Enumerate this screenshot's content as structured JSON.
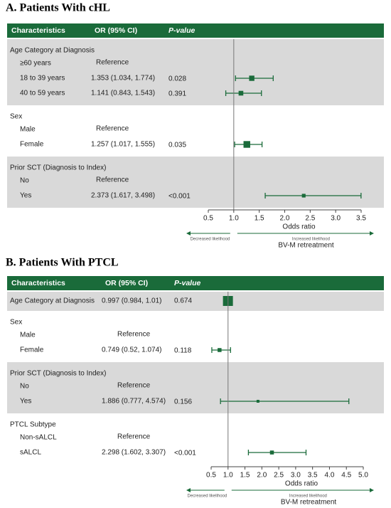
{
  "chart_data": [
    {
      "type": "forest",
      "title": "A. Patients With cHL",
      "columns": [
        "Characteristics",
        "OR (95% CI)",
        "P-value"
      ],
      "xlabel": "Odds ratio",
      "left_note": "Decreased likelihood",
      "right_note": "Increased likelihood",
      "footer": "BV-M retreatment",
      "xlim": [
        0.5,
        3.5
      ],
      "xticks": [
        0.5,
        {
          "value": 1,
          "label": "1.0"
        },
        1.5,
        {
          "value": 2,
          "label": "2.0"
        },
        2.5,
        {
          "value": 3,
          "label": "3.0"
        },
        3.5
      ],
      "reference_line": 1,
      "color": "#1a6b3a",
      "groups": [
        {
          "label": "Age Category at Diagnosis",
          "rows": [
            {
              "label": "≥60 years",
              "reference": "Reference"
            },
            {
              "label": "18 to 39 years",
              "value": 1.353,
              "lower": 1.034,
              "upper": 1.774,
              "value_label": "1.353 (1.034, 1.774)",
              "p_value": 0.028
            },
            {
              "label": "40 to 59 years",
              "value": 1.141,
              "lower": 0.843,
              "upper": 1.543,
              "value_label": "1.141 (0.843, 1.543)",
              "p_value": 0.391
            }
          ]
        },
        {
          "label": "Sex",
          "rows": [
            {
              "label": "Male",
              "reference": "Reference"
            },
            {
              "label": "Female",
              "value": 1.257,
              "lower": 1.017,
              "upper": 1.555,
              "value_label": "1.257 (1.017, 1.555)",
              "p_value": 0.035
            }
          ]
        },
        {
          "label": "Prior SCT (Diagnosis to Index)",
          "rows": [
            {
              "label": "No",
              "reference": "Reference"
            },
            {
              "label": "Yes",
              "value": 2.373,
              "lower": 1.617,
              "upper": 3.498,
              "value_label": "2.373 (1.617, 3.498)",
              "p_value": "<0.001"
            }
          ]
        }
      ]
    },
    {
      "type": "forest",
      "title": "B. Patients With PTCL",
      "columns": [
        "Characteristics",
        "OR (95% CI)",
        "P-value"
      ],
      "xlabel": "Odds ratio",
      "left_note": "Decreased likelihood",
      "right_note": "Increased likelihood",
      "footer": "BV-M retreatment",
      "xlim": [
        0.5,
        5.0
      ],
      "xticks": [
        0.5,
        {
          "value": 1,
          "label": "1.0"
        },
        1.5,
        {
          "value": 2,
          "label": "2.0"
        },
        2.5,
        {
          "value": 3,
          "label": "3.0"
        },
        3.5,
        {
          "value": 4,
          "label": "4.0"
        },
        4.5,
        {
          "value": 5,
          "label": "5.0"
        }
      ],
      "reference_line": 1,
      "color": "#1a6b3a",
      "groups": [
        {
          "label": "Age Category at Diagnosis",
          "value": 0.997,
          "lower": 0.984,
          "upper": 1.01,
          "value_label": "0.997 (0.984, 1.01)",
          "p_value": 0.674,
          "rows": []
        },
        {
          "label": "Sex",
          "rows": [
            {
              "label": "Male",
              "reference": "Reference"
            },
            {
              "label": "Female",
              "value": 0.749,
              "lower": 0.52,
              "upper": 1.074,
              "value_label": "0.749 (0.52, 1.074)",
              "p_value": 0.118
            }
          ]
        },
        {
          "label": "Prior SCT (Diagnosis to Index)",
          "rows": [
            {
              "label": "No",
              "reference": "Reference"
            },
            {
              "label": "Yes",
              "value": 1.886,
              "lower": 0.777,
              "upper": 4.574,
              "value_label": "1.886 (0.777, 4.574)",
              "p_value": 0.156
            }
          ]
        },
        {
          "label": "PTCL Subtype",
          "rows": [
            {
              "label": "Non-sALCL",
              "reference": "Reference"
            },
            {
              "label": "sALCL",
              "value": 2.298,
              "lower": 1.602,
              "upper": 3.307,
              "value_label": "2.298 (1.602, 3.307)",
              "p_value": "<0.001"
            }
          ]
        }
      ]
    }
  ]
}
